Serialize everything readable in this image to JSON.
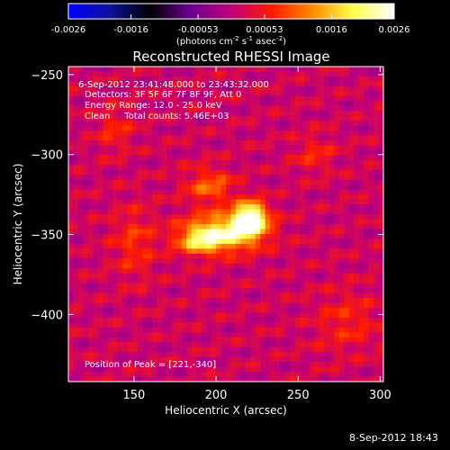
{
  "colorbar": {
    "ticks": [
      "-0.0026",
      "-0.0016",
      "-0.00053",
      "0.00053",
      "0.0016",
      "0.0026"
    ],
    "tick_values": [
      -0.0026,
      -0.0016,
      -0.00053,
      0.00053,
      0.0016,
      0.0026
    ],
    "range": [
      -0.0026,
      0.0026
    ],
    "units_parts": [
      "(photons cm",
      "-2",
      " s",
      "-1",
      " asec",
      "-2",
      ")"
    ],
    "stops": [
      "#0000ff",
      "#1010a0",
      "#000000",
      "#6a0090",
      "#c0007a",
      "#ff1a00",
      "#ff8c00",
      "#ffff50",
      "#ffffff"
    ]
  },
  "chart_data": {
    "type": "heatmap",
    "title": "Reconstructed RHESSI Image",
    "xlabel": "Heliocentric X (arcsec)",
    "ylabel": "Heliocentric Y (arcsec)",
    "xlim": [
      110,
      302
    ],
    "ylim": [
      -442,
      -245
    ],
    "x_ticks": [
      150,
      200,
      250,
      300
    ],
    "y_ticks": [
      -250,
      -300,
      -350,
      -400
    ],
    "peak": [
      221,
      -340
    ],
    "sources": [
      {
        "x": 221,
        "y": -340,
        "sx": 7,
        "sy": 7,
        "amp": 0.0026
      },
      {
        "x": 205,
        "y": -349,
        "sx": 16,
        "sy": 8,
        "amp": 0.0019
      },
      {
        "x": 190,
        "y": -354,
        "sx": 10,
        "sy": 6,
        "amp": 0.0011
      },
      {
        "x": 196,
        "y": -320,
        "sx": 10,
        "sy": 8,
        "amp": 0.0009
      },
      {
        "x": 150,
        "y": -355,
        "sx": 9,
        "sy": 16,
        "amp": 0.0006
      },
      {
        "x": 138,
        "y": -285,
        "sx": 8,
        "sy": 10,
        "amp": 0.0005
      },
      {
        "x": 260,
        "y": -300,
        "sx": 9,
        "sy": 8,
        "amp": 0.0005
      },
      {
        "x": 280,
        "y": -405,
        "sx": 14,
        "sy": 14,
        "amp": 0.0005
      }
    ],
    "annotations": {
      "time": "6-Sep-2012 23:41:48.000 to 23:43:32.000",
      "detectors": "Detectors: 3F 5F 6F 7F 8F 9F, Att 0",
      "energy": "Energy Range: 12.0 - 25.0 keV",
      "clean_total": "Clean     Total counts: 5.46E+03",
      "peak_label": "Position of Peak = [221,-340]"
    }
  },
  "footer": {
    "timestamp": "8-Sep-2012 18:43"
  }
}
